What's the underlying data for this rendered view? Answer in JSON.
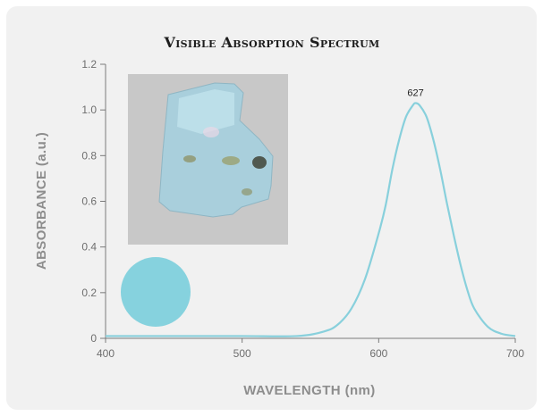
{
  "chart_data": {
    "type": "line",
    "title": "Visible Absorption Spectrum",
    "xlabel": "WAVELENGTH (nm)",
    "ylabel": "ABSORBANCE (a.u.)",
    "xlim": [
      400,
      700
    ],
    "ylim": [
      0,
      1.2
    ],
    "x_ticks": [
      "400",
      "500",
      "600",
      "700"
    ],
    "y_ticks": [
      "0",
      "0.2",
      "0.4",
      "0.6",
      "0.8",
      "1.0",
      "1.2"
    ],
    "grid": false,
    "series": [
      {
        "color": "#88d0dc",
        "x": [
          400,
          450,
          500,
          540,
          560,
          570,
          580,
          590,
          600,
          605,
          610,
          615,
          620,
          625,
          627,
          630,
          635,
          640,
          645,
          650,
          655,
          660,
          665,
          670,
          680,
          690,
          700
        ],
        "y": [
          0.01,
          0.01,
          0.01,
          0.01,
          0.03,
          0.06,
          0.13,
          0.26,
          0.46,
          0.58,
          0.74,
          0.87,
          0.97,
          1.02,
          1.03,
          1.02,
          0.97,
          0.87,
          0.74,
          0.59,
          0.45,
          0.32,
          0.21,
          0.13,
          0.05,
          0.02,
          0.01
        ]
      }
    ],
    "annotations": [
      {
        "text": "627",
        "x": 627,
        "y": 1.03
      }
    ],
    "color_swatch": "#86d2de"
  }
}
